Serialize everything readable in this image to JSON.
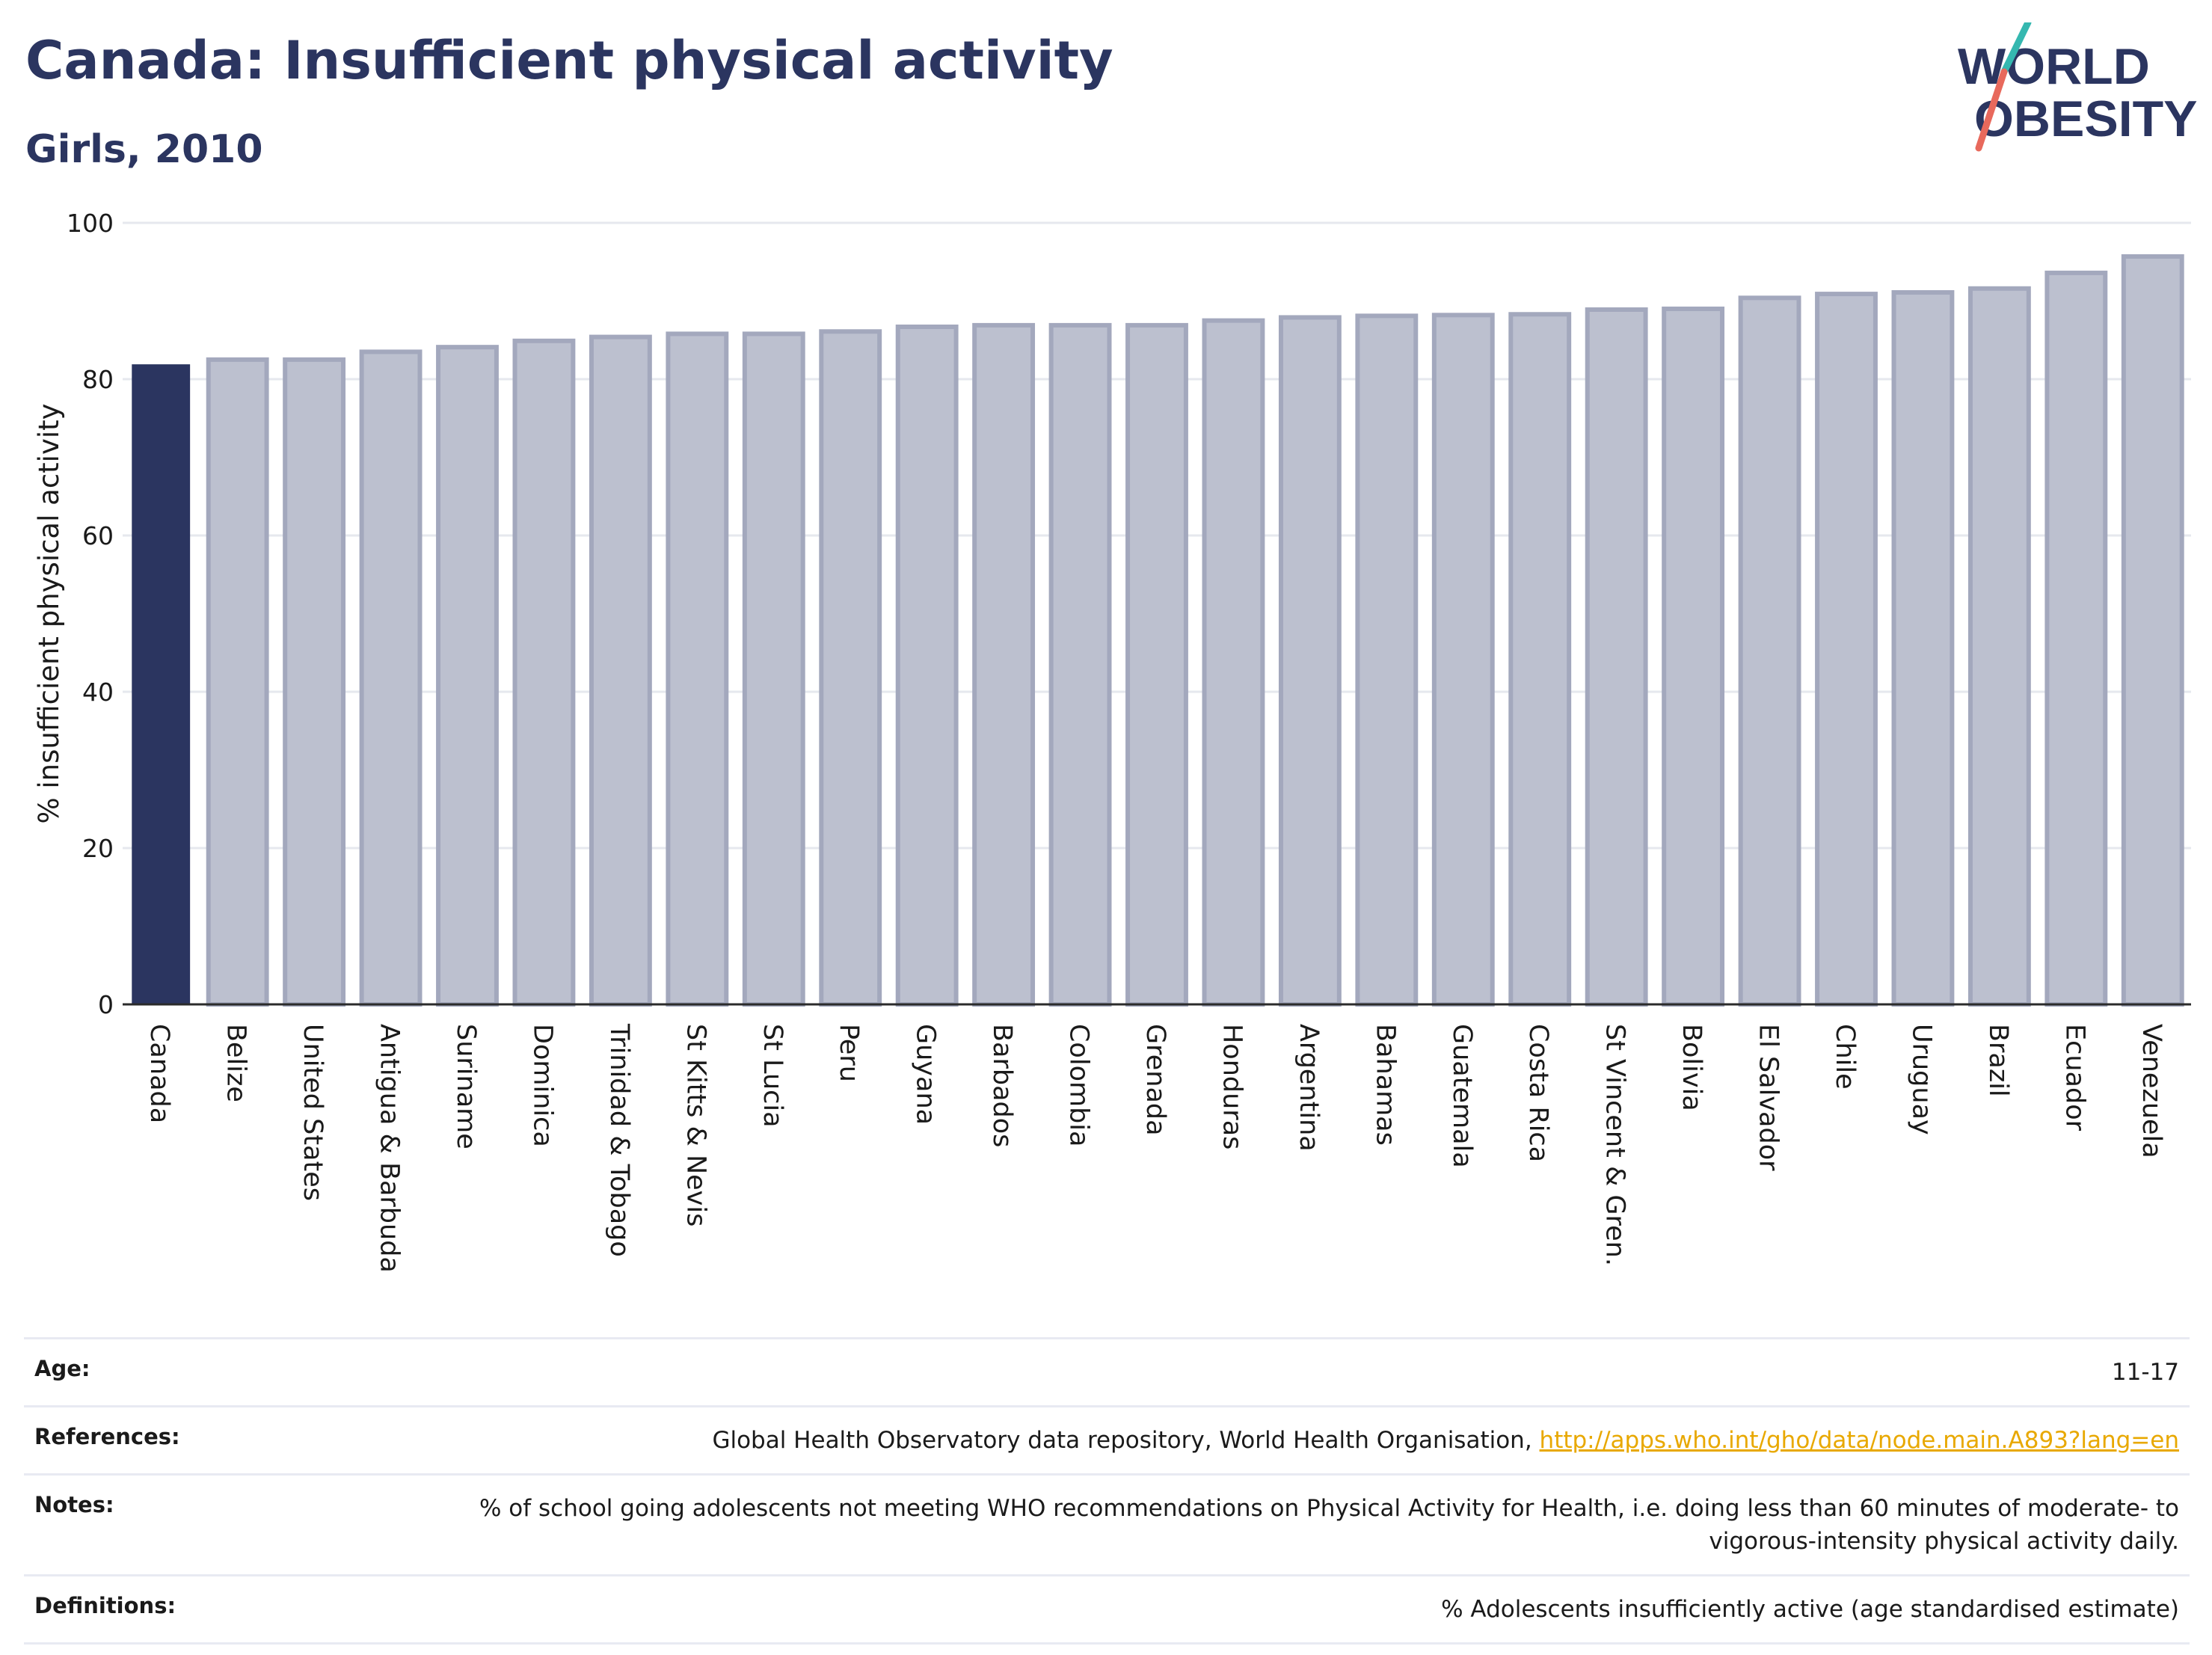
{
  "header": {
    "title": "Canada: Insufficient physical activity",
    "subtitle": "Girls, 2010"
  },
  "logo": {
    "line1": "WORLD",
    "line2": "OBESITY"
  },
  "colors": {
    "highlight": "#2b3560",
    "bar_fill": "#bcc0cf",
    "bar_stroke": "#a3a8bd",
    "link": "#e8a800",
    "title": "#2b3560"
  },
  "chart_data": {
    "type": "bar",
    "title": "Canada: Insufficient physical activity",
    "subtitle": "Girls, 2010",
    "xlabel": "",
    "ylabel": "% insufficient physical activity",
    "ylim": [
      0,
      100
    ],
    "yticks": [
      0,
      20,
      40,
      60,
      80,
      100
    ],
    "grid": true,
    "highlight": "Canada",
    "categories": [
      "Canada",
      "Belize",
      "United States",
      "Antigua & Barbuda",
      "Suriname",
      "Dominica",
      "Trinidad & Tobago",
      "St Kitts & Nevis",
      "St Lucia",
      "Peru",
      "Guyana",
      "Barbados",
      "Colombia",
      "Grenada",
      "Honduras",
      "Argentina",
      "Bahamas",
      "Guatemala",
      "Costa Rica",
      "St Vincent & Gren.",
      "Bolivia",
      "El Salvador",
      "Chile",
      "Uruguay",
      "Brazil",
      "Ecuador",
      "Venezuela"
    ],
    "values": [
      81.9,
      82.5,
      82.5,
      83.5,
      84.1,
      84.9,
      85.4,
      85.8,
      85.8,
      86.1,
      86.7,
      86.9,
      86.9,
      86.9,
      87.5,
      87.9,
      88.1,
      88.2,
      88.3,
      88.9,
      89.0,
      90.4,
      90.9,
      91.1,
      91.6,
      93.6,
      95.7
    ]
  },
  "info": {
    "age_label": "Age:",
    "age_value": "11-17",
    "references_label": "References:",
    "references_text": "Global Health Observatory data repository, World Health Organisation, ",
    "references_link": "http://apps.who.int/gho/data/node.main.A893?lang=en",
    "notes_label": "Notes:",
    "notes_value": "% of school going adolescents not meeting WHO recommendations on Physical Activity for Health, i.e. doing less than 60 minutes of moderate- to vigorous-intensity physical activity daily.",
    "definitions_label": "Definitions:",
    "definitions_value": "% Adolescents insufficiently active (age standardised estimate)"
  }
}
